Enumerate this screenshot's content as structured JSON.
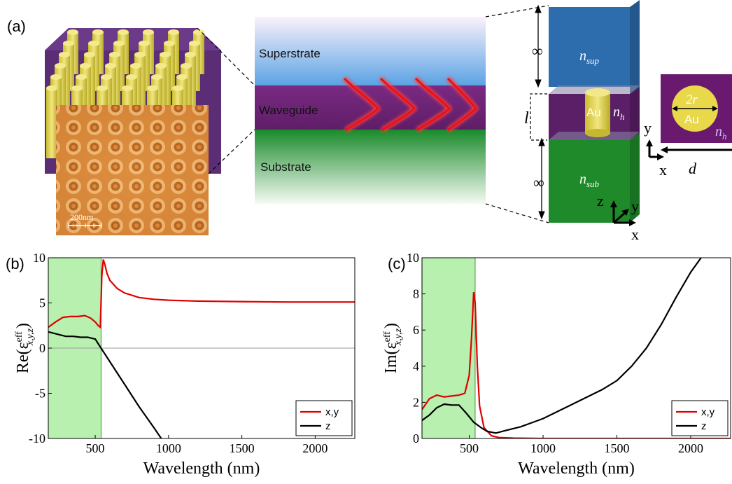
{
  "panel_labels": {
    "a": "(a)",
    "b": "(b)",
    "c": "(c)"
  },
  "afm": {
    "scale_bar": "200nm"
  },
  "waveguide": {
    "superstrate": "Superstrate",
    "waveguide": "Waveguide",
    "substrate": "Substrate"
  },
  "unit_cell": {
    "n_sup": "n",
    "n_sup_sub": "sup",
    "n_h": "n",
    "n_h_sub": "h",
    "n_sub": "n",
    "n_sub_sub": "sub",
    "au": "Au",
    "infinity": "∞",
    "l": "l",
    "axis_z": "z",
    "axis_y": "y",
    "axis_x": "x"
  },
  "cross_section": {
    "two_r": "2r",
    "au": "Au",
    "n_h": "n",
    "n_h_sub": "h",
    "axis_y": "y",
    "axis_x": "x",
    "d": "d"
  },
  "colors": {
    "gold": "#e8d84a",
    "purple": "#6a1a6e",
    "blue": "#2f6fb0",
    "green": "#1f8a2a",
    "series_xy": "#e00000",
    "series_z": "#000000",
    "highlight": "#b8f0b0"
  },
  "chart_data": [
    {
      "type": "line",
      "panel": "(b)",
      "xlabel": "Wavelength (nm)",
      "ylabel": "Re(ε",
      "ylabel_sup": "eff",
      "ylabel_sub": "x,y,z",
      "xlim": [
        180,
        2270
      ],
      "ylim": [
        -10,
        10
      ],
      "xticks": [
        500,
        1000,
        1500,
        2000
      ],
      "yticks": [
        -10,
        -5,
        0,
        5,
        10
      ],
      "highlight_range": [
        180,
        540
      ],
      "zero_line": true,
      "legend_position": "bottom-right",
      "series": [
        {
          "name": "x,y",
          "color": "#e00000",
          "x": [
            180,
            230,
            280,
            330,
            380,
            430,
            470,
            500,
            520,
            535,
            545,
            555,
            565,
            580,
            600,
            650,
            700,
            800,
            900,
            1000,
            1200,
            1500,
            1800,
            2000,
            2270
          ],
          "y": [
            2.3,
            2.9,
            3.4,
            3.5,
            3.5,
            3.6,
            3.3,
            2.9,
            2.5,
            2.3,
            8.0,
            9.8,
            9.3,
            8.3,
            7.5,
            6.6,
            6.1,
            5.6,
            5.4,
            5.3,
            5.2,
            5.15,
            5.1,
            5.1,
            5.1
          ]
        },
        {
          "name": "z",
          "color": "#000000",
          "x": [
            180,
            250,
            300,
            350,
            400,
            450,
            500,
            540,
            600,
            700,
            800,
            900,
            950
          ],
          "y": [
            1.8,
            1.5,
            1.3,
            1.3,
            1.2,
            1.2,
            1.0,
            0.0,
            -1.5,
            -4.0,
            -6.5,
            -8.8,
            -10.0
          ]
        }
      ]
    },
    {
      "type": "line",
      "panel": "(c)",
      "xlabel": "Wavelength (nm)",
      "ylabel": "Im(ε",
      "ylabel_sup": "eff",
      "ylabel_sub": "x,y,z",
      "xlim": [
        180,
        2270
      ],
      "ylim": [
        0,
        10
      ],
      "xticks": [
        500,
        1000,
        1500,
        2000
      ],
      "yticks": [
        0,
        2,
        4,
        6,
        8,
        10
      ],
      "highlight_range": [
        180,
        540
      ],
      "zero_line": false,
      "legend_position": "bottom-right",
      "series": [
        {
          "name": "x,y",
          "color": "#e00000",
          "x": [
            180,
            230,
            280,
            330,
            380,
            430,
            470,
            500,
            515,
            530,
            540,
            555,
            570,
            600,
            650,
            700,
            800,
            1000,
            1500,
            2000,
            2270
          ],
          "y": [
            1.6,
            2.2,
            2.4,
            2.3,
            2.35,
            2.4,
            2.5,
            3.5,
            5.5,
            8.1,
            7.5,
            4.0,
            1.8,
            0.6,
            0.15,
            0.05,
            0.02,
            0.0,
            0.0,
            0.0,
            0.0
          ]
        },
        {
          "name": "z",
          "color": "#000000",
          "x": [
            180,
            230,
            280,
            330,
            380,
            430,
            480,
            530,
            580,
            620,
            680,
            750,
            850,
            1000,
            1200,
            1400,
            1500,
            1600,
            1700,
            1800,
            1900,
            2000,
            2070
          ],
          "y": [
            1.0,
            1.3,
            1.7,
            1.9,
            1.85,
            1.85,
            1.4,
            0.9,
            0.6,
            0.4,
            0.3,
            0.45,
            0.65,
            1.1,
            1.9,
            2.7,
            3.2,
            4.0,
            5.0,
            6.3,
            7.8,
            9.2,
            10.0
          ]
        }
      ]
    }
  ]
}
